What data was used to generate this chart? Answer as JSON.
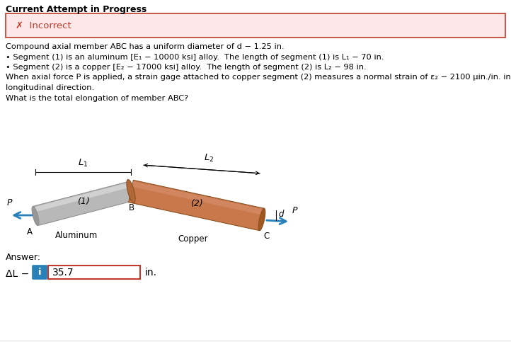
{
  "title": "Current Attempt in Progress",
  "incorrect_text": "✗  Incorrect",
  "incorrect_bg": "#fce8e8",
  "incorrect_border": "#c0392b",
  "line0": "Compound axial member ABC has a uniform diameter of d − 1.25 in.",
  "line1": "• Segment (1) is an aluminum [E₁ − 10000 ksi] alloy.  The length of segment (1) is L₁ − 70 in.",
  "line2": "• Segment (2) is a copper [E₂ − 17000 ksi] alloy.  The length of segment (2) is L₂ − 98 in.",
  "line3": "When axial force P is applied, a strain gage attached to copper segment (2) measures a normal strain of ε₂ − 2100 μin./in. in the",
  "line4": "longitudinal direction.",
  "line5": "What is the total elongation of member ABC?",
  "answer_label": "ΔL −",
  "answer_value": "35.7",
  "answer_unit": "in.",
  "bg": "#ffffff",
  "fg": "#000000",
  "arrow_color": "#2980b9",
  "alum_color": "#b8b8b8",
  "alum_hi": "#d8d8d8",
  "alum_dark": "#909090",
  "copper_color": "#c8784a",
  "copper_hi": "#d89070",
  "copper_dark": "#8b5020"
}
